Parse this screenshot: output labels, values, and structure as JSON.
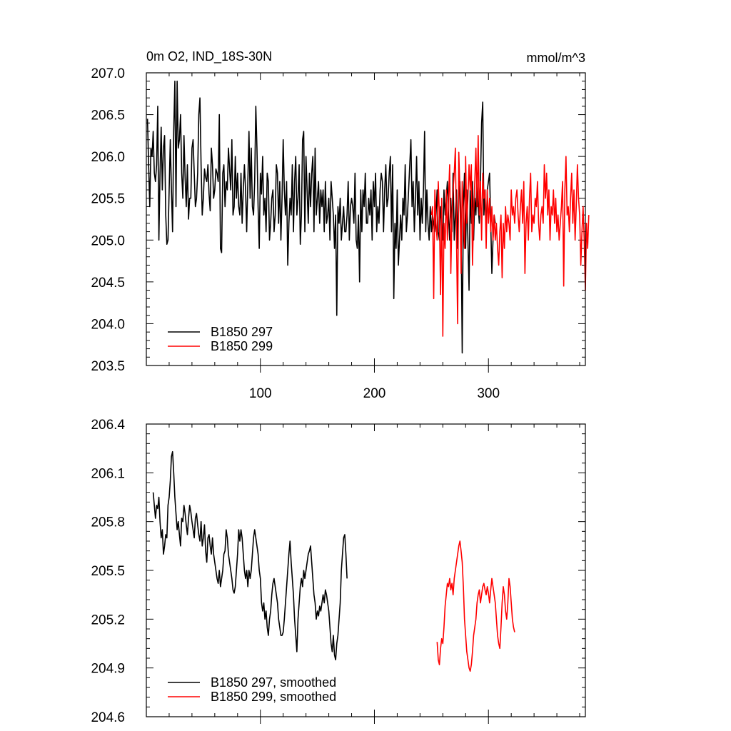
{
  "colors": {
    "series_297": "#000000",
    "series_299": "#ff0000"
  },
  "chart_data": [
    {
      "type": "line",
      "title_left": "0m O2, IND_18S-30N",
      "title_right": "mmol/m^3",
      "ylim": [
        203.5,
        207.0
      ],
      "xlim": [
        0,
        385
      ],
      "yticks": [
        "203.5",
        "204.0",
        "204.5",
        "205.0",
        "205.5",
        "206.0",
        "206.5",
        "207.0"
      ],
      "xticks": [
        "100",
        "200",
        "300"
      ],
      "legend_position": "bottom-left",
      "series": [
        {
          "name": "B1850 297",
          "x_start": 1,
          "values": [
            206.45,
            205.9,
            205.4,
            206.1,
            206.0,
            206.3,
            205.8,
            205.7,
            205.9,
            206.6,
            205.0,
            205.8,
            206.35,
            205.6,
            206.1,
            206.25,
            205.3,
            204.95,
            205.0,
            205.6,
            206.2,
            205.6,
            205.1,
            206.3,
            206.9,
            205.4,
            206.9,
            206.1,
            206.2,
            206.5,
            205.8,
            205.5,
            206.25,
            205.75,
            205.4,
            205.9,
            205.25,
            205.5,
            205.5,
            206.1,
            206.2,
            205.8,
            205.4,
            205.5,
            205.8,
            206.5,
            206.7,
            205.9,
            205.3,
            205.5,
            205.85,
            205.75,
            205.7,
            205.9,
            205.55,
            205.35,
            206.1,
            205.9,
            205.5,
            205.6,
            205.85,
            205.8,
            205.7,
            206.5,
            204.9,
            204.85,
            205.8,
            205.9,
            205.4,
            205.7,
            205.6,
            206.1,
            205.85,
            205.6,
            206.2,
            205.3,
            205.4,
            206.0,
            205.5,
            205.8,
            205.4,
            205.3,
            205.8,
            205.2,
            205.6,
            205.9,
            205.6,
            205.1,
            205.7,
            206.3,
            205.5,
            206.1,
            205.4,
            205.3,
            205.7,
            206.6,
            206.1,
            205.4,
            204.9,
            205.8,
            205.55,
            206.0,
            205.3,
            205.5,
            205.1,
            205.8,
            205.7,
            205.0,
            205.2,
            205.5,
            205.6,
            205.1,
            205.3,
            205.9,
            205.8,
            205.2,
            205.7,
            205.0,
            205.5,
            206.2,
            205.6,
            205.3,
            205.7,
            204.7,
            205.2,
            205.5,
            205.3,
            205.9,
            205.1,
            205.7,
            206.0,
            205.3,
            205.5,
            205.9,
            204.95,
            205.3,
            206.2,
            206.3,
            205.1,
            206.0,
            205.6,
            205.2,
            205.8,
            205.4,
            205.8,
            206.0,
            205.1,
            206.1,
            205.3,
            205.5,
            205.7,
            205.2,
            205.6,
            205.4,
            205.6,
            205.1,
            205.7,
            205.2,
            205.3,
            205.5,
            205.0,
            205.7,
            205.5,
            205.3,
            204.9,
            205.3,
            204.1,
            205.4,
            205.2,
            205.5,
            205.0,
            205.2,
            205.4,
            205.1,
            205.1,
            205.3,
            205.7,
            205.0,
            205.4,
            205.5,
            205.4,
            205.2,
            205.8,
            205.0,
            204.9,
            205.3,
            204.5,
            205.6,
            205.1,
            205.6,
            205.4,
            205.8,
            205.2,
            205.2,
            205.5,
            205.3,
            205.6,
            205.0,
            205.7,
            205.4,
            205.8,
            205.1,
            205.4,
            205.2,
            205.6,
            205.8,
            205.7,
            205.1,
            205.6,
            205.9,
            205.4,
            205.5,
            205.8,
            206.0,
            205.1,
            205.9,
            204.3,
            205.2,
            204.9,
            205.6,
            204.7,
            205.0,
            205.3,
            205.0,
            205.5,
            205.3,
            205.9,
            205.1,
            205.3,
            205.6,
            205.9,
            206.2,
            205.4,
            205.7,
            205.1,
            205.5,
            206.0,
            205.3,
            205.7,
            205.0,
            205.5,
            205.2,
            205.6,
            206.3,
            205.1,
            205.6,
            205.2,
            205.0,
            205.4,
            205.1,
            205.3,
            205.2,
            205.1,
            205.3,
            205.6,
            205.1,
            205.0,
            205.4,
            205.2,
            205.0,
            205.6,
            205.3,
            205.5,
            205.7,
            205.3,
            205.0,
            205.5,
            205.1,
            205.8,
            205.0,
            205.3,
            205.6,
            204.9,
            205.5,
            205.7,
            205.2,
            203.65,
            205.4,
            205.8,
            204.9,
            205.6,
            205.0,
            204.4,
            205.6,
            205.2,
            205.7,
            205.0,
            205.5,
            205.3,
            205.8,
            205.4,
            205.2,
            205.7,
            206.4,
            206.65,
            205.3,
            205.6,
            205.1,
            205.6,
            205.7,
            205.8,
            205.2,
            204.6,
            205.0,
            205.3,
            205.2
          ]
        },
        {
          "name": "B1850 299",
          "x_start": 250,
          "values": [
            205.3,
            205.4,
            204.3,
            205.6,
            205.2,
            205.0,
            205.7,
            205.3,
            204.35,
            205.5,
            203.85,
            205.2,
            204.9,
            205.6,
            205.0,
            205.5,
            205.9,
            204.6,
            205.3,
            205.6,
            205.8,
            206.1,
            205.0,
            204.0,
            206.05,
            205.6,
            204.6,
            205.7,
            205.3,
            204.9,
            206.0,
            205.2,
            205.5,
            205.9,
            205.6,
            205.9,
            204.7,
            205.3,
            205.7,
            206.1,
            205.4,
            206.25,
            205.3,
            205.7,
            205.0,
            205.8,
            205.5,
            205.6,
            204.9,
            205.6,
            205.2,
            205.5,
            205.1,
            205.4,
            205.0,
            205.3,
            205.0,
            205.2,
            204.9,
            204.7,
            205.1,
            205.3,
            204.55,
            205.2,
            204.9,
            205.4,
            205.1,
            205.3,
            205.2,
            205.0,
            205.6,
            205.3,
            205.4,
            205.2,
            205.5,
            205.6,
            205.3,
            205.1,
            205.4,
            205.6,
            205.2,
            205.7,
            204.6,
            205.2,
            205.4,
            205.0,
            205.5,
            205.8,
            205.1,
            205.3,
            205.2,
            205.5,
            205.4,
            205.7,
            205.2,
            205.0,
            205.3,
            205.4,
            205.2,
            205.9,
            205.5,
            205.8,
            205.3,
            205.6,
            205.0,
            205.4,
            205.3,
            205.6,
            205.2,
            205.5,
            205.1,
            205.3,
            205.0,
            205.2,
            205.4,
            205.7,
            204.45,
            205.6,
            206.0,
            205.3,
            205.4,
            205.1,
            205.5,
            205.8,
            205.2,
            205.6,
            205.0,
            205.4,
            205.9,
            205.5,
            205.3,
            204.7,
            205.1,
            205.4,
            205.0,
            204.4,
            205.2,
            204.9,
            205.3
          ]
        }
      ]
    },
    {
      "type": "line",
      "ylim": [
        204.6,
        206.4
      ],
      "xlim": [
        0,
        385
      ],
      "yticks": [
        "204.6",
        "204.9",
        "205.2",
        "205.5",
        "205.8",
        "206.1",
        "206.4"
      ],
      "legend_position": "bottom-left",
      "series": [
        {
          "name": "B1850 297, smoothed",
          "x_start": 6,
          "values": [
            205.98,
            205.9,
            205.82,
            205.9,
            205.88,
            205.95,
            205.8,
            205.7,
            205.75,
            205.6,
            205.65,
            205.72,
            205.7,
            205.9,
            205.95,
            206.05,
            206.2,
            206.23,
            206.1,
            205.95,
            205.85,
            205.75,
            205.8,
            205.72,
            205.65,
            205.82,
            205.8,
            205.9,
            205.85,
            205.78,
            205.72,
            205.82,
            205.9,
            205.86,
            205.8,
            205.75,
            205.7,
            205.82,
            205.85,
            205.78,
            205.72,
            205.68,
            205.8,
            205.65,
            205.7,
            205.78,
            205.62,
            205.55,
            205.7,
            205.72,
            205.65,
            205.6,
            205.7,
            205.6,
            205.55,
            205.5,
            205.45,
            205.42,
            205.5,
            205.4,
            205.45,
            205.5,
            205.6,
            205.62,
            205.75,
            205.7,
            205.6,
            205.55,
            205.5,
            205.45,
            205.38,
            205.36,
            205.4,
            205.5,
            205.6,
            205.75,
            205.68,
            205.75,
            205.7,
            205.6,
            205.5,
            205.45,
            205.5,
            205.4,
            205.5,
            205.45,
            205.5,
            205.6,
            205.7,
            205.75,
            205.7,
            205.65,
            205.6,
            205.5,
            205.45,
            205.3,
            205.25,
            205.3,
            205.2,
            205.25,
            205.15,
            205.1,
            205.2,
            205.25,
            205.35,
            205.42,
            205.45,
            205.4,
            205.35,
            205.3,
            205.2,
            205.15,
            205.1,
            205.1,
            205.12,
            205.2,
            205.3,
            205.4,
            205.5,
            205.6,
            205.68,
            205.55,
            205.45,
            205.35,
            205.2,
            205.1,
            205.0,
            205.2,
            205.3,
            205.4,
            205.45,
            205.4,
            205.5,
            205.45,
            205.5,
            205.55,
            205.6,
            205.62,
            205.65,
            205.55,
            205.45,
            205.35,
            205.3,
            205.2,
            205.25,
            205.22,
            205.28,
            205.25,
            205.3,
            205.35,
            205.3,
            205.38,
            205.35,
            205.3,
            205.25,
            205.15,
            205.05,
            205.0,
            205.1,
            204.98,
            204.95,
            205.05,
            205.1,
            205.2,
            205.3,
            205.5,
            205.6,
            205.7,
            205.72,
            205.6,
            205.45
          ]
        },
        {
          "name": "B1850 299, smoothed",
          "x_start": 255,
          "values": [
            205.06,
            204.95,
            204.92,
            205.02,
            205.08,
            205.05,
            205.15,
            205.28,
            205.35,
            205.42,
            205.4,
            205.45,
            205.38,
            205.42,
            205.35,
            205.45,
            205.5,
            205.55,
            205.6,
            205.65,
            205.68,
            205.62,
            205.55,
            205.4,
            205.2,
            205.1,
            205.0,
            204.95,
            204.9,
            204.88,
            204.92,
            205.0,
            205.1,
            205.15,
            205.2,
            205.3,
            205.35,
            205.38,
            205.3,
            205.35,
            205.4,
            205.42,
            205.38,
            205.35,
            205.4,
            205.36,
            205.3,
            205.38,
            205.45,
            205.4,
            205.35,
            205.3,
            205.2,
            205.1,
            205.05,
            205.02,
            205.15,
            205.3,
            205.4,
            205.35,
            205.25,
            205.2,
            205.3,
            205.45,
            205.4,
            205.3,
            205.2,
            205.15,
            205.12
          ]
        }
      ]
    }
  ]
}
